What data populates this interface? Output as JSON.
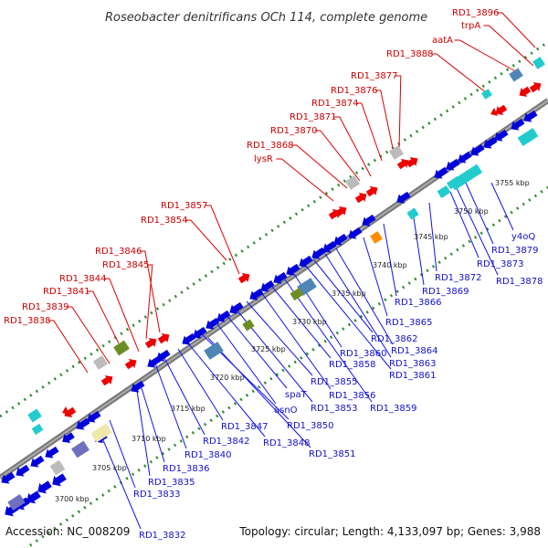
{
  "title": "Roseobacter denitrificans OCh 114, complete genome",
  "footer": {
    "accession": "Accession: NC_008209",
    "stats": "Topology: circular; Length: 4,133,097 bp; Genes: 3,988"
  },
  "colors": {
    "red": "#ee0000",
    "blue": "#0000dd",
    "cyan": "#22cccc",
    "steel": "#4f86b8",
    "olive": "#6b8e23",
    "khaki": "#eee8aa",
    "slate": "#7070c0",
    "gray": "#bbbbbb",
    "orange": "#ff8c00",
    "dots": "#2e8b2e",
    "backbone": "#777777",
    "label_red": "#cc0000",
    "label_blue": "#1111cc"
  },
  "kbp_labels": [
    "3700 kbp",
    "3705 kbp",
    "3710 kbp",
    "3715 kbp",
    "3720 kbp",
    "3725 kbp",
    "3730 kbp",
    "3735 kbp",
    "3740 kbp",
    "3745 kbp",
    "3750 kbp",
    "3755 kbp"
  ],
  "top_labels": [
    "RD1_3896",
    "trpA",
    "aatA",
    "RD1_3888",
    "RD1_3877",
    "RD1_3876",
    "RD1_3874",
    "RD1_3871",
    "RD1_3870",
    "RD1_3868",
    "lysR",
    "RD1_3857",
    "RD1_3854",
    "RD1_3846",
    "RD1_3845",
    "RD1_3844",
    "RD1_3841",
    "RD1_3839",
    "RD1_3838"
  ],
  "bottom_labels": [
    "y4oQ",
    "RD1_3879",
    "RD1_3878",
    "RD1_3873",
    "RD1_3872",
    "RD1_3869",
    "RD1_3866",
    "RD1_3865",
    "RD1_3864",
    "RD1_3863",
    "RD1_3862",
    "RD1_3861",
    "RD1_3860",
    "RD1_3859",
    "RD1_3858",
    "RD1_3856",
    "RD1_3855",
    "RD1_3853",
    "spaT",
    "asnO",
    "RD1_3851",
    "RD1_3850",
    "RD1_3848",
    "RD1_3847",
    "RD1_3842",
    "RD1_3840",
    "RD1_3836",
    "RD1_3835",
    "RD1_3833",
    "RD1_3832"
  ]
}
